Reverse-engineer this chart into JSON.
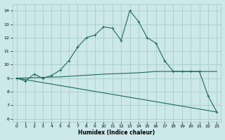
{
  "xlabel": "Humidex (Indice chaleur)",
  "ylabel": "",
  "xlim": [
    -0.5,
    23.5
  ],
  "ylim": [
    5.8,
    14.5
  ],
  "yticks": [
    6,
    7,
    8,
    9,
    10,
    11,
    12,
    13,
    14
  ],
  "xticks": [
    0,
    1,
    2,
    3,
    4,
    5,
    6,
    7,
    8,
    9,
    10,
    11,
    12,
    13,
    14,
    15,
    16,
    17,
    18,
    19,
    20,
    21,
    22,
    23
  ],
  "bg_color": "#cce8e8",
  "grid_color": "#aacccc",
  "line_color": "#1a6b5a",
  "line1_x": [
    0,
    1,
    2,
    3,
    4,
    5,
    6,
    7,
    8,
    9,
    10,
    11,
    12,
    13,
    14,
    15,
    16,
    17,
    18,
    19,
    20,
    21,
    22,
    23
  ],
  "line1_y": [
    9.0,
    8.8,
    9.3,
    9.0,
    9.2,
    9.6,
    10.3,
    11.3,
    12.0,
    12.2,
    12.8,
    12.7,
    11.8,
    14.0,
    13.2,
    12.0,
    11.6,
    10.3,
    9.5,
    9.5,
    9.5,
    9.5,
    7.7,
    6.5
  ],
  "line2_x": [
    0,
    5,
    10,
    14,
    16,
    21,
    23
  ],
  "line2_y": [
    9.0,
    9.1,
    9.3,
    9.4,
    9.5,
    9.5,
    9.5
  ],
  "line3_x": [
    0,
    23
  ],
  "line3_y": [
    9.0,
    6.5
  ]
}
